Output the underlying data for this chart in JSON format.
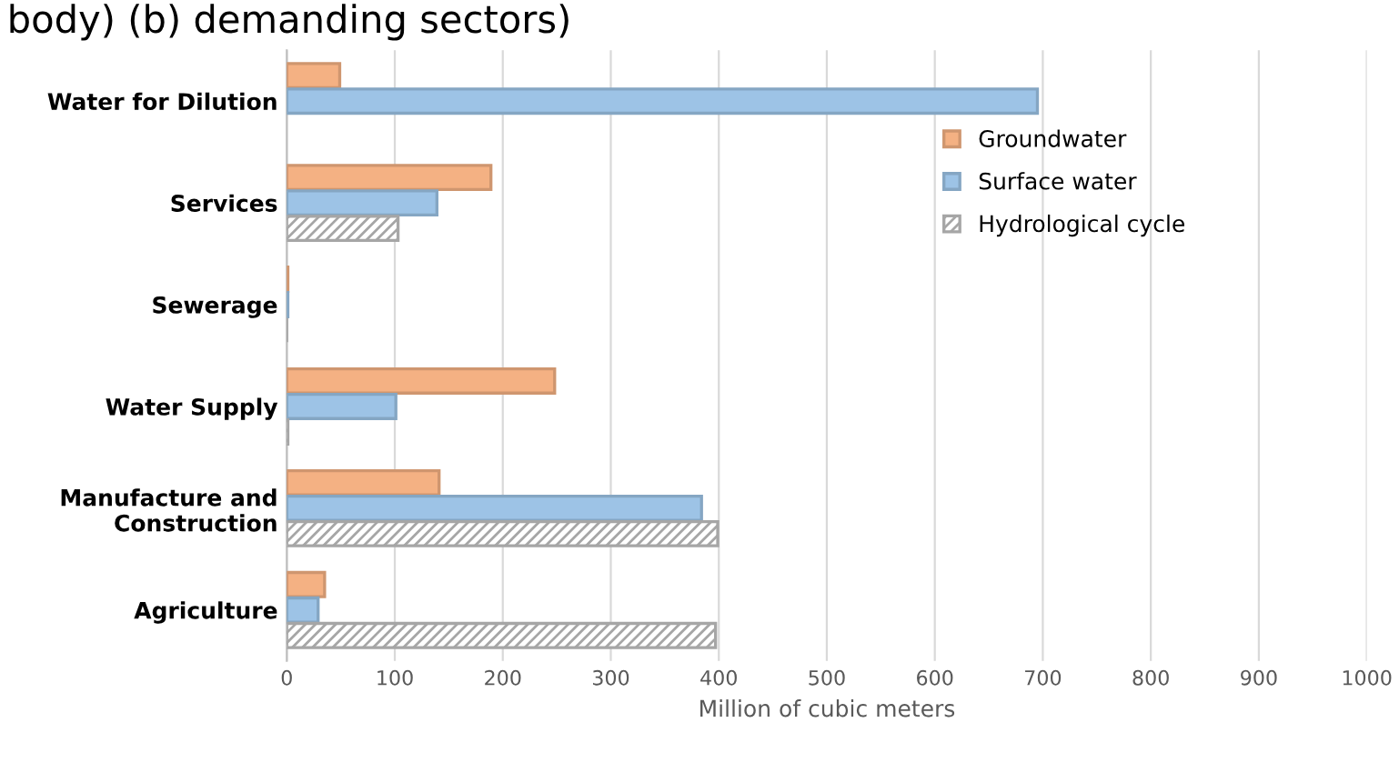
{
  "chart_data": {
    "type": "bar",
    "orientation": "horizontal",
    "title": "body) (b) demanding sectors)",
    "xlabel": "Million of cubic meters",
    "categories": [
      "Water for Dilution",
      "Services",
      "Sewerage",
      "Water Supply",
      "Manufacture and\nConstruction",
      "Agriculture"
    ],
    "series": [
      {
        "name": "Groundwater",
        "color": "#f4b183",
        "values": [
          49,
          189,
          1,
          248,
          141,
          35
        ]
      },
      {
        "name": "Surface water",
        "color": "#9dc3e6",
        "values": [
          695,
          139,
          1,
          101,
          384,
          29
        ]
      },
      {
        "name": "Hydrological cycle",
        "color": "#a6a6a6",
        "values": [
          null,
          103,
          0,
          1,
          399,
          397
        ]
      }
    ],
    "xlim": [
      0,
      1000
    ],
    "xticks": [
      0,
      100,
      200,
      300,
      400,
      500,
      600,
      700,
      800,
      900,
      1000
    ],
    "grid": "x",
    "legend": "top right"
  }
}
